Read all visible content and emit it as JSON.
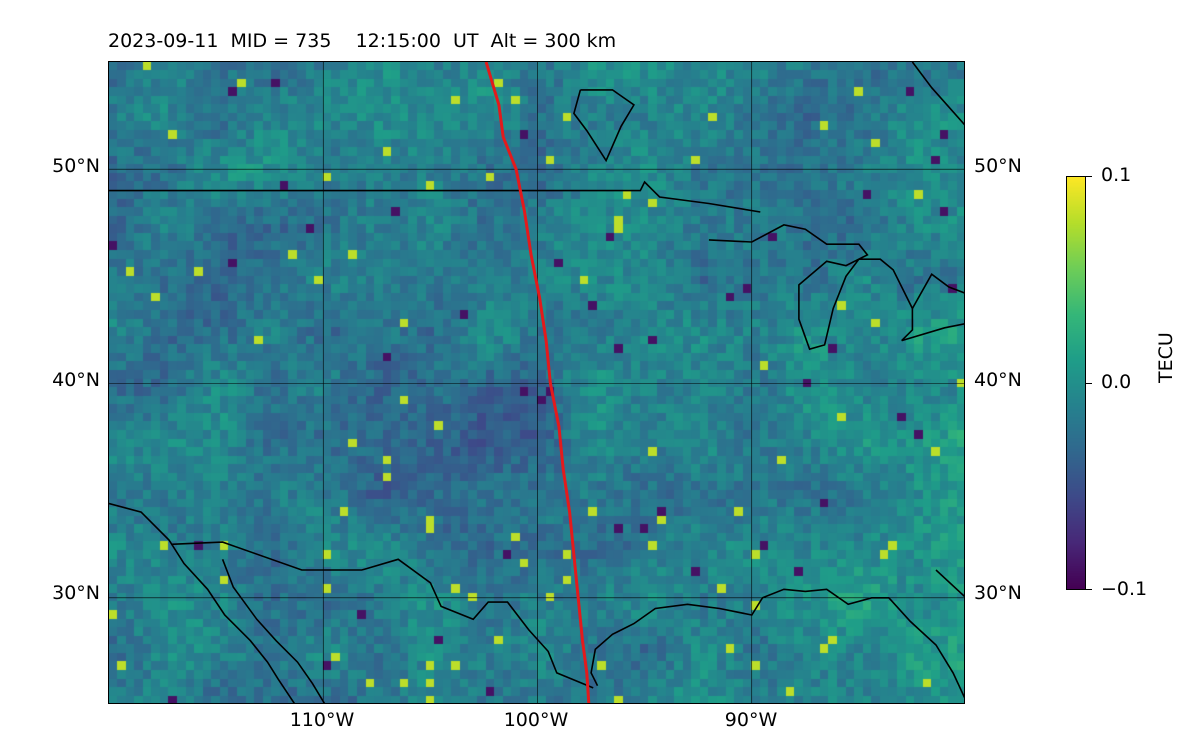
{
  "title": {
    "date": "2023-09-11",
    "mid_text": "MID = 735",
    "time_text": "12:15:00  UT",
    "alt_text": "Alt = 300 km"
  },
  "map": {
    "projection": "lat-lon",
    "lon_range": [
      -120,
      -80
    ],
    "lat_range": [
      25,
      55
    ],
    "lat_ticks": [
      {
        "value": 30,
        "label": "30°N"
      },
      {
        "value": 40,
        "label": "40°N"
      },
      {
        "value": 50,
        "label": "50°N"
      }
    ],
    "lon_ticks": [
      {
        "value": -110,
        "label": "110°W"
      },
      {
        "value": -100,
        "label": "100°W"
      },
      {
        "value": -90,
        "label": "90°W"
      }
    ],
    "gridlines": true,
    "terminator_color": "#e31a1c",
    "coastline_color": "#000000",
    "terminator_path": [
      [
        -102.4,
        55
      ],
      [
        -101.8,
        53
      ],
      [
        -101.6,
        51.5
      ],
      [
        -101,
        50
      ],
      [
        -100.6,
        48
      ],
      [
        -100.3,
        46
      ],
      [
        -99.9,
        44
      ],
      [
        -99.6,
        42
      ],
      [
        -99.4,
        40
      ],
      [
        -99,
        38
      ],
      [
        -98.8,
        36
      ],
      [
        -98.5,
        34
      ],
      [
        -98.3,
        32
      ],
      [
        -98.1,
        30
      ],
      [
        -97.9,
        28
      ],
      [
        -97.7,
        26.5
      ],
      [
        -97.6,
        25
      ]
    ]
  },
  "colorbar": {
    "label": "TECU",
    "min": -0.1,
    "max": 0.1,
    "ticks": [
      {
        "value": 0.1,
        "label": "0.1"
      },
      {
        "value": 0.0,
        "label": "0.0"
      },
      {
        "value": -0.1,
        "label": "−0.1"
      }
    ],
    "colormap": "viridis"
  }
}
